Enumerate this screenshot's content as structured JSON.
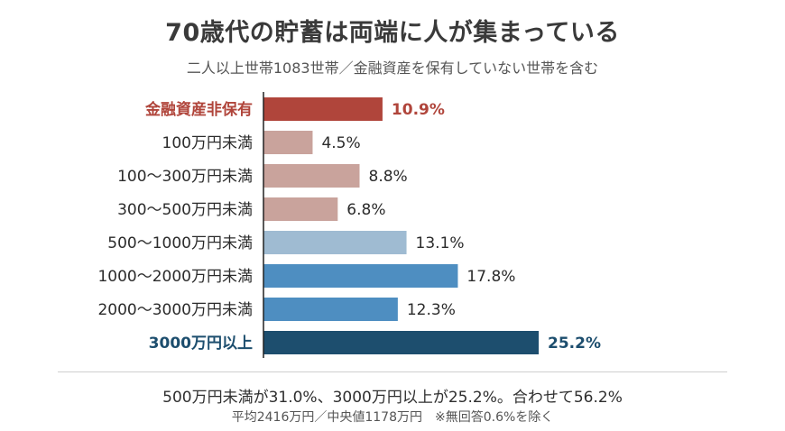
{
  "header": {
    "title": "70歳代の貯蓄は両端に人が集まっている",
    "subtitle": "二人以上世帯1083世帯／金融資産を保有していない世帯を含む"
  },
  "chart_data": {
    "type": "bar",
    "orientation": "horizontal",
    "title": "70歳代の貯蓄は両端に人が集まっている",
    "subtitle": "二人以上世帯1083世帯／金融資産を保有していない世帯を含む",
    "categories": [
      "金融資産非保有",
      "100万円未満",
      "100～300万円未満",
      "300～500万円未満",
      "500～1000万円未満",
      "1000～2000万円未満",
      "2000～3000万円未満",
      "3000万円以上"
    ],
    "values": [
      10.9,
      4.5,
      8.8,
      6.8,
      13.1,
      17.8,
      12.3,
      25.2
    ],
    "value_labels": [
      "10.9%",
      "4.5%",
      "8.8%",
      "6.8%",
      "13.1%",
      "17.8%",
      "12.3%",
      "25.2%"
    ],
    "bar_colors": [
      "#b0453b",
      "#c9a39c",
      "#c9a39c",
      "#c9a39c",
      "#9fbbd2",
      "#4e8ec1",
      "#4e8ec1",
      "#1d4e6e"
    ],
    "label_colors": [
      "#b0453b",
      "#2b2b2b",
      "#2b2b2b",
      "#2b2b2b",
      "#2b2b2b",
      "#2b2b2b",
      "#2b2b2b",
      "#1d4e6e"
    ],
    "bold_rows": [
      0,
      7
    ],
    "xlim": [
      0,
      25.2
    ],
    "unit": "%",
    "grid": false,
    "legend": "none"
  },
  "footer": {
    "note1": "500万円未満が31.0%、3000万円以上が25.2%。合わせて56.2%",
    "note2": "平均2416万円／中央値1178万円　※無回答0.6%を除く"
  }
}
